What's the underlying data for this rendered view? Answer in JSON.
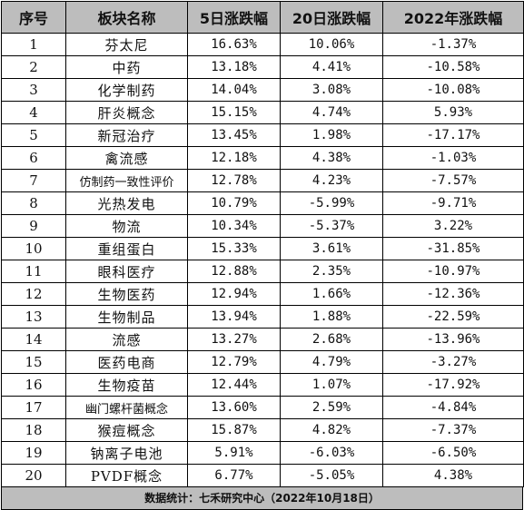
{
  "table": {
    "headers": [
      "序号",
      "板块名称",
      "5日涨跌幅",
      "20日涨跌幅",
      "2022年涨跌幅"
    ],
    "rows": [
      [
        "1",
        "芬太尼",
        "16.63%",
        "10.06%",
        "-1.37%"
      ],
      [
        "2",
        "中药",
        "13.18%",
        "4.41%",
        "-10.58%"
      ],
      [
        "3",
        "化学制药",
        "14.04%",
        "3.08%",
        "-10.08%"
      ],
      [
        "4",
        "肝炎概念",
        "15.15%",
        "4.74%",
        "5.93%"
      ],
      [
        "5",
        "新冠治疗",
        "13.45%",
        "1.98%",
        "-17.17%"
      ],
      [
        "6",
        "禽流感",
        "12.18%",
        "4.38%",
        "-1.03%"
      ],
      [
        "7",
        "仿制药一致性评价",
        "12.78%",
        "4.23%",
        "-7.57%"
      ],
      [
        "8",
        "光热发电",
        "10.79%",
        "-5.99%",
        "-9.71%"
      ],
      [
        "9",
        "物流",
        "10.34%",
        "-5.37%",
        "3.22%"
      ],
      [
        "10",
        "重组蛋白",
        "15.33%",
        "3.61%",
        "-31.85%"
      ],
      [
        "11",
        "眼科医疗",
        "12.88%",
        "2.35%",
        "-10.97%"
      ],
      [
        "12",
        "生物医药",
        "12.94%",
        "1.66%",
        "-12.36%"
      ],
      [
        "13",
        "生物制品",
        "13.94%",
        "1.88%",
        "-22.59%"
      ],
      [
        "14",
        "流感",
        "13.27%",
        "2.68%",
        "-13.96%"
      ],
      [
        "15",
        "医药电商",
        "12.79%",
        "4.79%",
        "-3.27%"
      ],
      [
        "16",
        "生物疫苗",
        "12.44%",
        "1.07%",
        "-17.92%"
      ],
      [
        "17",
        "幽门螺杆菌概念",
        "13.60%",
        "2.59%",
        "-4.84%"
      ],
      [
        "18",
        "猴痘概念",
        "15.87%",
        "4.82%",
        "-7.37%"
      ],
      [
        "19",
        "钠离子电池",
        "5.91%",
        "-6.03%",
        "-6.50%"
      ],
      [
        "20",
        "PVDF概念",
        "6.77%",
        "-5.05%",
        "4.38%"
      ]
    ]
  },
  "footer": "数据统计：七禾研究中心（2022年10月18日）"
}
